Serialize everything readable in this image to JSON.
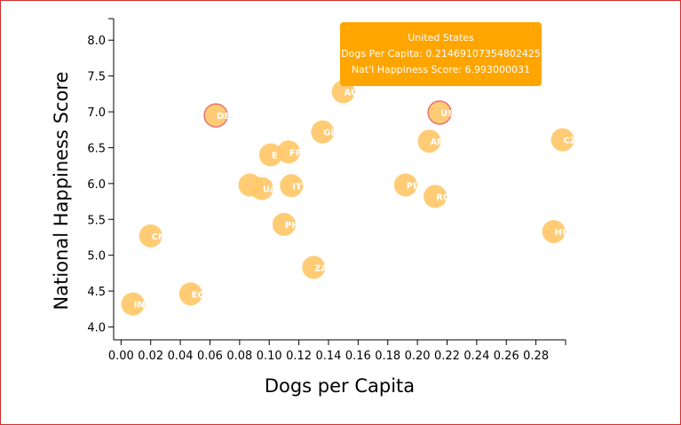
{
  "colors": {
    "bubble_fill": "#ffc766",
    "highlight_stroke": "#e57373",
    "tooltip_bg": "#ffa500",
    "frame_border": "#d32f2f",
    "axis": "#000000"
  },
  "tooltip": {
    "country": "United States",
    "dogs_line": "Dogs Per Capita: 0.214691073548024​25",
    "happiness_line": "Nat'l Happiness Score: 6.993000031"
  },
  "chart_data": {
    "type": "scatter",
    "title": "",
    "xlabel": "Dogs per Capita",
    "ylabel": "National Happiness Score",
    "xlim": [
      -0.005,
      0.3
    ],
    "ylim": [
      3.82,
      8.3
    ],
    "xticks": [
      "0.00",
      "0.02",
      "0.04",
      "0.06",
      "0.08",
      "0.10",
      "0.12",
      "0.14",
      "0.16",
      "0.18",
      "0.20",
      "0.22",
      "0.24",
      "0.26",
      "0.28"
    ],
    "yticks": [
      "4.0",
      "4.5",
      "5.0",
      "5.5",
      "6.0",
      "6.5",
      "7.0",
      "7.5",
      "8.0"
    ],
    "highlighted": [
      "DE",
      "US"
    ],
    "points": [
      {
        "label": "IN",
        "x": 0.008,
        "y": 4.32
      },
      {
        "label": "CN",
        "x": 0.02,
        "y": 5.27
      },
      {
        "label": "EG",
        "x": 0.047,
        "y": 4.46
      },
      {
        "label": "DE",
        "x": 0.064,
        "y": 6.95
      },
      {
        "label": "RU",
        "x": 0.087,
        "y": 5.98
      },
      {
        "label": "UA",
        "x": 0.095,
        "y": 5.93
      },
      {
        "label": "ES",
        "x": 0.101,
        "y": 6.4
      },
      {
        "label": "FR",
        "x": 0.113,
        "y": 6.44
      },
      {
        "label": "PH",
        "x": 0.11,
        "y": 5.43
      },
      {
        "label": "IT",
        "x": 0.115,
        "y": 5.97
      },
      {
        "label": "ZA",
        "x": 0.13,
        "y": 4.83
      },
      {
        "label": "GB",
        "x": 0.136,
        "y": 6.72
      },
      {
        "label": "AU",
        "x": 0.15,
        "y": 7.28
      },
      {
        "label": "PL",
        "x": 0.192,
        "y": 5.98
      },
      {
        "label": "AR",
        "x": 0.208,
        "y": 6.59
      },
      {
        "label": "RO",
        "x": 0.212,
        "y": 5.82
      },
      {
        "label": "US",
        "x": 0.215,
        "y": 6.99
      },
      {
        "label": "HU",
        "x": 0.292,
        "y": 5.33
      },
      {
        "label": "CZ",
        "x": 0.298,
        "y": 6.61
      }
    ]
  }
}
